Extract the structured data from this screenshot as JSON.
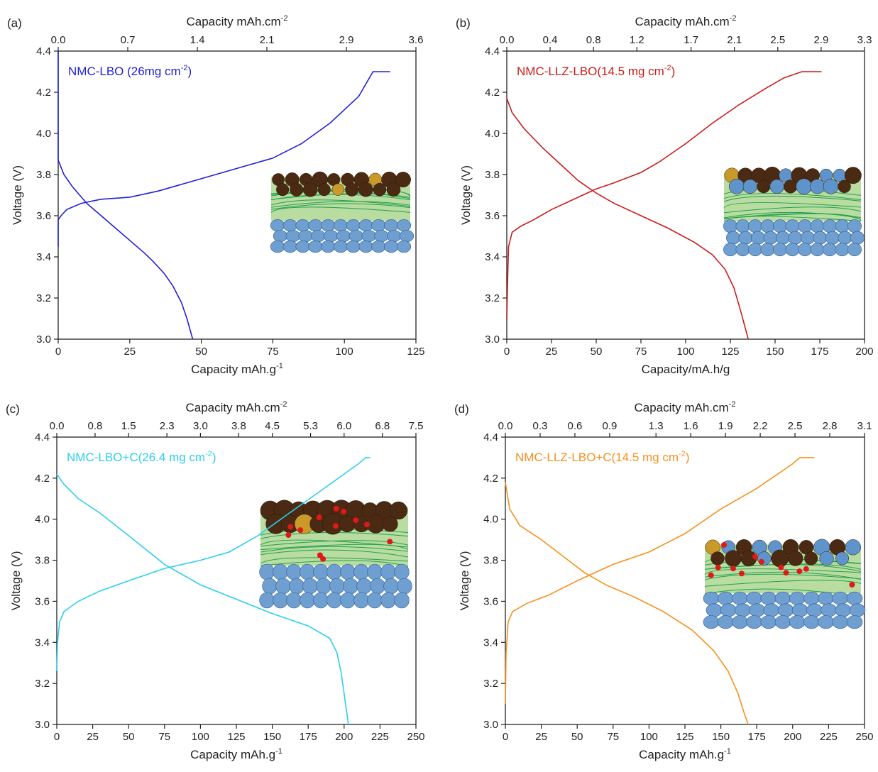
{
  "chart_data": [
    {
      "type": "line",
      "panel_label": "(a)",
      "xlabel": "Capacity mAh.g",
      "xlabel_sup": "-1",
      "x2label": "Capacity mAh.cm",
      "x2label_sup": "-2",
      "ylabel": "Voltage (V)",
      "annotation": "NMC-LBO (26mg cm",
      "annotation_sup": "-2",
      "annotation_end": ")",
      "xlim": [
        0,
        125
      ],
      "xticks": [
        0,
        25,
        50,
        75,
        100,
        125
      ],
      "x2lim": [
        0,
        3.6
      ],
      "x2ticks": [
        {
          "value": 0,
          "label": "0.0"
        },
        0.7,
        1.4,
        2.1,
        2.9,
        3.6
      ],
      "ylim": [
        3,
        4.4
      ],
      "yticks": [
        {
          "value": 3,
          "label": "3.0"
        },
        3.2,
        3.4,
        3.6,
        3.8,
        {
          "value": 4,
          "label": "4.0"
        },
        4.2,
        4.4
      ],
      "series": [
        {
          "color": "#2020d8",
          "x": [
            0,
            0,
            1,
            3,
            8,
            15,
            25,
            35,
            45,
            55,
            65,
            75,
            85,
            95,
            105,
            110,
            116
          ],
          "values": [
            3.45,
            3.58,
            3.6,
            3.63,
            3.66,
            3.68,
            3.69,
            3.72,
            3.76,
            3.8,
            3.84,
            3.88,
            3.95,
            4.05,
            4.18,
            4.3,
            4.3
          ]
        },
        {
          "color": "#2020d8",
          "x": [
            0,
            0,
            2,
            5,
            10,
            15,
            20,
            25,
            30,
            33,
            37,
            40,
            43,
            45,
            47
          ],
          "values": [
            4.4,
            3.87,
            3.8,
            3.74,
            3.66,
            3.6,
            3.54,
            3.48,
            3.42,
            3.38,
            3.32,
            3.26,
            3.18,
            3.1,
            3.0
          ]
        }
      ]
    },
    {
      "type": "line",
      "panel_label": "(b)",
      "xlabel": "Capacity/mA.h/g",
      "x2label": "Capacity mAh.cm",
      "x2label_sup": "-2",
      "ylabel": "Voltage (V)",
      "annotation": "NMC-LLZ-LBO(14.5 mg cm",
      "annotation_sup": "-2",
      "annotation_end": ")",
      "xlim": [
        0,
        200
      ],
      "xticks": [
        0,
        25,
        50,
        75,
        100,
        125,
        150,
        175,
        200
      ],
      "x2lim": [
        0,
        3.3
      ],
      "x2ticks": [
        {
          "value": 0,
          "label": "0.0"
        },
        0.4,
        0.8,
        1.2,
        1.7,
        2.1,
        2.5,
        2.9,
        3.3
      ],
      "ylim": [
        3,
        4.4
      ],
      "yticks": [
        {
          "value": 3,
          "label": "3.0"
        },
        3.2,
        3.4,
        3.6,
        3.8,
        {
          "value": 4,
          "label": "4.0"
        },
        4.2,
        4.4
      ],
      "series": [
        {
          "color": "#cc1b1b",
          "x": [
            0,
            0.5,
            1,
            3,
            8,
            15,
            25,
            40,
            50,
            60,
            75,
            85,
            100,
            115,
            130,
            145,
            155,
            165,
            176
          ],
          "values": [
            3.1,
            3.3,
            3.45,
            3.52,
            3.55,
            3.58,
            3.63,
            3.69,
            3.73,
            3.76,
            3.81,
            3.86,
            3.95,
            4.05,
            4.14,
            4.22,
            4.27,
            4.3,
            4.3
          ]
        },
        {
          "color": "#cc1b1b",
          "x": [
            0,
            3,
            10,
            20,
            30,
            40,
            50,
            60,
            75,
            90,
            105,
            115,
            122,
            127,
            131,
            135
          ],
          "values": [
            4.17,
            4.1,
            4.02,
            3.93,
            3.85,
            3.77,
            3.71,
            3.66,
            3.6,
            3.54,
            3.47,
            3.41,
            3.34,
            3.25,
            3.13,
            3.0
          ]
        }
      ]
    },
    {
      "type": "line",
      "panel_label": "(c)",
      "xlabel": "Capacity mAh.g",
      "xlabel_sup": "-1",
      "x2label": "Capacity mAh.cm",
      "x2label_sup": "-2",
      "ylabel": "Voltage (V)",
      "annotation": "NMC-LBO+C(26.4 mg cm",
      "annotation_sup": "-2",
      "annotation_end": ")",
      "xlim": [
        0,
        250
      ],
      "xticks": [
        0,
        25,
        50,
        75,
        100,
        125,
        150,
        175,
        200,
        225,
        250
      ],
      "x2lim": [
        0,
        7.5
      ],
      "x2ticks": [
        {
          "value": 0,
          "label": "0.0"
        },
        0.8,
        1.5,
        2.3,
        {
          "value": 3,
          "label": "3.0"
        },
        3.8,
        4.5,
        5.3,
        {
          "value": 6,
          "label": "6.0"
        },
        6.8,
        7.5
      ],
      "ylim": [
        3,
        4.4
      ],
      "yticks": [
        {
          "value": 3,
          "label": "3.0"
        },
        3.2,
        3.4,
        3.6,
        3.8,
        {
          "value": 4,
          "label": "4.0"
        },
        4.2,
        4.4
      ],
      "series": [
        {
          "color": "#2bcfee",
          "x": [
            0,
            0.5,
            2,
            5,
            15,
            30,
            50,
            75,
            100,
            120,
            140,
            160,
            180,
            200,
            210,
            215,
            218
          ],
          "values": [
            3.26,
            3.4,
            3.5,
            3.55,
            3.6,
            3.65,
            3.7,
            3.76,
            3.8,
            3.84,
            3.92,
            4.02,
            4.12,
            4.22,
            4.27,
            4.3,
            4.3
          ]
        },
        {
          "color": "#2bcfee",
          "x": [
            0,
            5,
            15,
            30,
            50,
            75,
            100,
            125,
            150,
            175,
            190,
            195,
            198,
            201,
            203
          ],
          "values": [
            4.22,
            4.17,
            4.1,
            4.03,
            3.92,
            3.78,
            3.68,
            3.61,
            3.54,
            3.48,
            3.42,
            3.35,
            3.25,
            3.1,
            3.0
          ]
        }
      ]
    },
    {
      "type": "line",
      "panel_label": "(d)",
      "xlabel": "Capacity mAh.g",
      "xlabel_sup": "-1",
      "x2label": "Capacity mAh.cm",
      "x2label_sup": "-2",
      "ylabel": "Voltage (V)",
      "annotation": "NMC-LLZ-LBO+C(14.5 mg cm",
      "annotation_sup": "-2",
      "annotation_end": ")",
      "xlim": [
        0,
        250
      ],
      "xticks": [
        0,
        25,
        50,
        75,
        100,
        125,
        150,
        175,
        200,
        225,
        250
      ],
      "x2lim": [
        0,
        3.1
      ],
      "x2ticks": [
        {
          "value": 0,
          "label": "0.0"
        },
        0.3,
        0.6,
        0.9,
        1.3,
        1.6,
        1.9,
        2.2,
        2.5,
        2.8,
        3.1
      ],
      "ylim": [
        3,
        4.4
      ],
      "yticks": [
        {
          "value": 3,
          "label": "3.0"
        },
        3.2,
        3.4,
        3.6,
        3.8,
        {
          "value": 4,
          "label": "4.0"
        },
        4.2,
        4.4
      ],
      "series": [
        {
          "color": "#f7901e",
          "x": [
            0,
            0.5,
            2,
            5,
            15,
            30,
            50,
            75,
            100,
            125,
            150,
            175,
            200,
            205,
            215
          ],
          "values": [
            3.1,
            3.35,
            3.5,
            3.55,
            3.59,
            3.63,
            3.7,
            3.78,
            3.84,
            3.93,
            4.05,
            4.15,
            4.27,
            4.3,
            4.3
          ]
        },
        {
          "color": "#f7901e",
          "x": [
            0,
            3,
            10,
            25,
            40,
            55,
            70,
            90,
            110,
            130,
            145,
            155,
            162,
            166,
            169
          ],
          "values": [
            4.18,
            4.05,
            3.97,
            3.9,
            3.82,
            3.74,
            3.68,
            3.62,
            3.55,
            3.46,
            3.36,
            3.26,
            3.15,
            3.06,
            3.0
          ]
        }
      ]
    }
  ]
}
